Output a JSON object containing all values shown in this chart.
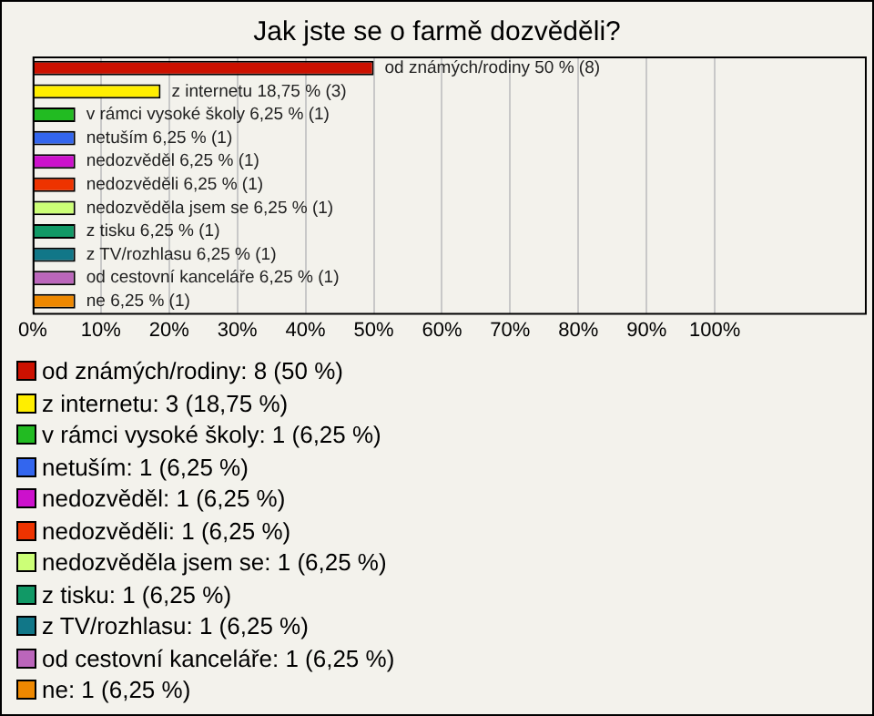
{
  "chart_data": {
    "type": "bar",
    "orientation": "horizontal",
    "title": "Jak jste se o farmě dozvěděli?",
    "categories": [
      null,
      null,
      null,
      null,
      null,
      null,
      null,
      null,
      null,
      null,
      null
    ],
    "xlim": [
      0,
      122
    ],
    "xticks": [
      {
        "value": 0,
        "label": "0%"
      },
      {
        "value": 10,
        "label": "10%"
      },
      {
        "value": 20,
        "label": "20%"
      },
      {
        "value": 30,
        "label": "30%"
      },
      {
        "value": 40,
        "label": "40%"
      },
      {
        "value": 50,
        "label": "50%"
      },
      {
        "value": 60,
        "label": "60%"
      },
      {
        "value": 70,
        "label": "70%"
      },
      {
        "value": 80,
        "label": "80%"
      },
      {
        "value": 90,
        "label": "90%"
      },
      {
        "value": 100,
        "label": "100%"
      }
    ],
    "tick_labels": "x",
    "grid": "x",
    "legend": "bottom",
    "series": [
      {
        "name": "od známých/rodiny: 8 (50 %)",
        "color": "#cc1100",
        "values": [
          50,
          null,
          null,
          null,
          null,
          null,
          null,
          null,
          null,
          null,
          null
        ],
        "value_labels": [
          "od známých/rodiny 50 % (8)",
          null,
          null,
          null,
          null,
          null,
          null,
          null,
          null,
          null,
          null
        ]
      },
      {
        "name": "z internetu: 3 (18,75 %)",
        "color": "#ffee00",
        "values": [
          null,
          18.75,
          null,
          null,
          null,
          null,
          null,
          null,
          null,
          null,
          null
        ],
        "value_labels": [
          null,
          "z internetu 18,75 % (3)",
          null,
          null,
          null,
          null,
          null,
          null,
          null,
          null,
          null
        ]
      },
      {
        "name": "v rámci vysoké školy: 1 (6,25 %)",
        "color": "#22bb22",
        "values": [
          null,
          null,
          6.25,
          null,
          null,
          null,
          null,
          null,
          null,
          null,
          null
        ],
        "value_labels": [
          null,
          null,
          "v rámci vysoké školy 6,25 % (1)",
          null,
          null,
          null,
          null,
          null,
          null,
          null,
          null
        ]
      },
      {
        "name": "netuším: 1 (6,25 %)",
        "color": "#3366ee",
        "values": [
          null,
          null,
          null,
          6.25,
          null,
          null,
          null,
          null,
          null,
          null,
          null
        ],
        "value_labels": [
          null,
          null,
          null,
          "netuším 6,25 % (1)",
          null,
          null,
          null,
          null,
          null,
          null,
          null
        ]
      },
      {
        "name": "nedozvěděl: 1 (6,25 %)",
        "color": "#cc11cc",
        "values": [
          null,
          null,
          null,
          null,
          6.25,
          null,
          null,
          null,
          null,
          null,
          null
        ],
        "value_labels": [
          null,
          null,
          null,
          null,
          "nedozvěděl 6,25 % (1)",
          null,
          null,
          null,
          null,
          null,
          null
        ]
      },
      {
        "name": "nedozvěděli: 1 (6,25 %)",
        "color": "#ee3300",
        "values": [
          null,
          null,
          null,
          null,
          null,
          6.25,
          null,
          null,
          null,
          null,
          null
        ],
        "value_labels": [
          null,
          null,
          null,
          null,
          null,
          "nedozvěděli 6,25 % (1)",
          null,
          null,
          null,
          null,
          null
        ]
      },
      {
        "name": "nedozvěděla jsem se: 1 (6,25 %)",
        "color": "#ccff77",
        "values": [
          null,
          null,
          null,
          null,
          null,
          null,
          6.25,
          null,
          null,
          null,
          null
        ],
        "value_labels": [
          null,
          null,
          null,
          null,
          null,
          null,
          "nedozvěděla jsem se 6,25 % (1)",
          null,
          null,
          null,
          null
        ]
      },
      {
        "name": "z tisku: 1 (6,25 %)",
        "color": "#119966",
        "values": [
          null,
          null,
          null,
          null,
          null,
          null,
          null,
          6.25,
          null,
          null,
          null
        ],
        "value_labels": [
          null,
          null,
          null,
          null,
          null,
          null,
          null,
          "z tisku 6,25 % (1)",
          null,
          null,
          null
        ]
      },
      {
        "name": "z TV/rozhlasu: 1 (6,25 %)",
        "color": "#117788",
        "values": [
          null,
          null,
          null,
          null,
          null,
          null,
          null,
          null,
          6.25,
          null,
          null
        ],
        "value_labels": [
          null,
          null,
          null,
          null,
          null,
          null,
          null,
          null,
          "z TV/rozhlasu 6,25 % (1)",
          null,
          null
        ]
      },
      {
        "name": "od cestovní kanceláře: 1 (6,25 %)",
        "color": "#bb66bb",
        "values": [
          null,
          null,
          null,
          null,
          null,
          null,
          null,
          null,
          null,
          6.25,
          null
        ],
        "value_labels": [
          null,
          null,
          null,
          null,
          null,
          null,
          null,
          null,
          null,
          "od cestovní kanceláře 6,25 % (1)",
          null
        ]
      },
      {
        "name": "ne: 1 (6,25 %)",
        "color": "#ee8800",
        "values": [
          null,
          null,
          null,
          null,
          null,
          null,
          null,
          null,
          null,
          null,
          6.25
        ],
        "value_labels": [
          null,
          null,
          null,
          null,
          null,
          null,
          null,
          null,
          null,
          null,
          "ne 6,25 % (1)"
        ]
      }
    ]
  }
}
